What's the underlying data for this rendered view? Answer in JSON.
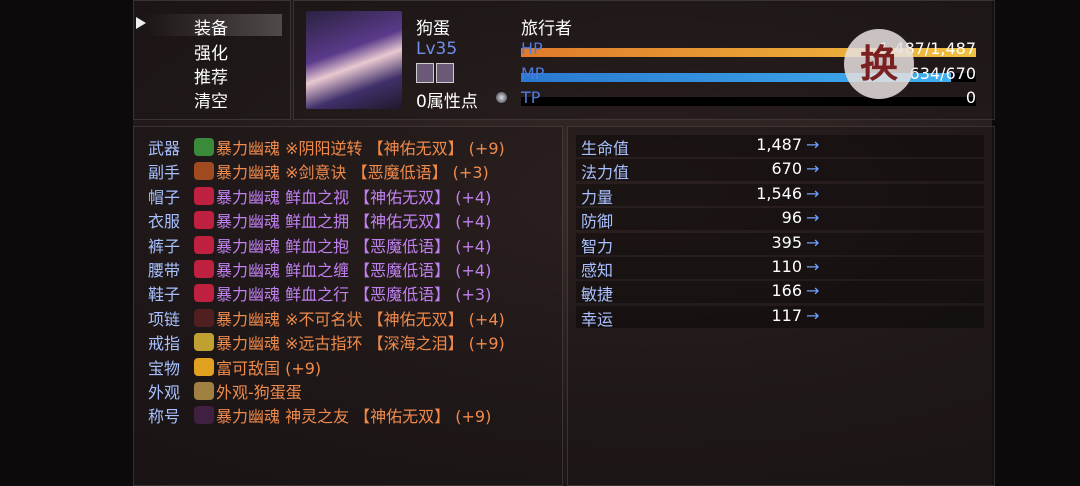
{
  "menu": {
    "items": [
      "装备",
      "强化",
      "推荐",
      "清空"
    ],
    "selected": 0
  },
  "character": {
    "name": "狗蛋",
    "class": "旅行者",
    "level": "Lv35",
    "attr_points": "0属性点",
    "hp": {
      "label": "HP",
      "value": "1,487/1,487",
      "fraction": 1.0
    },
    "mp": {
      "label": "MP",
      "value": "634/670",
      "fraction": 0.946
    },
    "tp": {
      "label": "TP",
      "value": "0",
      "fraction": 0
    }
  },
  "swap_button": "换",
  "colors": {
    "orange": "#f08a4b",
    "purple": "#c080f0",
    "slot": "#a8c0ff"
  },
  "equipment": [
    {
      "slot": "武器",
      "name": "暴力幽魂 ※阴阳逆转 【神佑无双】 (+9)",
      "color": "orange",
      "icon": "sword-icon"
    },
    {
      "slot": "副手",
      "name": "暴力幽魂 ※剑意诀 【恶魔低语】 (+3)",
      "color": "orange",
      "icon": "scroll-icon"
    },
    {
      "slot": "帽子",
      "name": "暴力幽魂 鲜血之视 【神佑无双】 (+4)",
      "color": "purple",
      "icon": "helmet-icon"
    },
    {
      "slot": "衣服",
      "name": "暴力幽魂 鲜血之拥 【神佑无双】 (+4)",
      "color": "purple",
      "icon": "armor-icon"
    },
    {
      "slot": "裤子",
      "name": "暴力幽魂 鲜血之抱 【恶魔低语】 (+4)",
      "color": "purple",
      "icon": "pants-icon"
    },
    {
      "slot": "腰带",
      "name": "暴力幽魂 鲜血之缠 【恶魔低语】 (+4)",
      "color": "purple",
      "icon": "belt-icon"
    },
    {
      "slot": "鞋子",
      "name": "暴力幽魂 鲜血之行 【恶魔低语】 (+3)",
      "color": "purple",
      "icon": "boots-icon"
    },
    {
      "slot": "项链",
      "name": "暴力幽魂 ※不可名状 【神佑无双】 (+4)",
      "color": "orange",
      "icon": "necklace-icon"
    },
    {
      "slot": "戒指",
      "name": "暴力幽魂 ※远古指环 【深海之泪】 (+9)",
      "color": "orange",
      "icon": "ring-icon"
    },
    {
      "slot": "宝物",
      "name": "富可敌国 (+9)",
      "color": "orange",
      "icon": "coin-icon"
    },
    {
      "slot": "外观",
      "name": "外观-狗蛋蛋",
      "color": "orange",
      "icon": "costume-icon"
    },
    {
      "slot": "称号",
      "name": "暴力幽魂 神灵之友 【神佑无双】 (+9)",
      "color": "orange",
      "icon": "title-icon"
    }
  ],
  "stats": [
    {
      "name": "生命值",
      "value": "1,487",
      "arrow": "→"
    },
    {
      "name": "法力值",
      "value": "670",
      "arrow": "→"
    },
    {
      "name": "力量",
      "value": "1,546",
      "arrow": "→"
    },
    {
      "name": "防御",
      "value": "96",
      "arrow": "→"
    },
    {
      "name": "智力",
      "value": "395",
      "arrow": "→"
    },
    {
      "name": "感知",
      "value": "110",
      "arrow": "→"
    },
    {
      "name": "敏捷",
      "value": "166",
      "arrow": "→"
    },
    {
      "name": "幸运",
      "value": "117",
      "arrow": "→"
    }
  ]
}
